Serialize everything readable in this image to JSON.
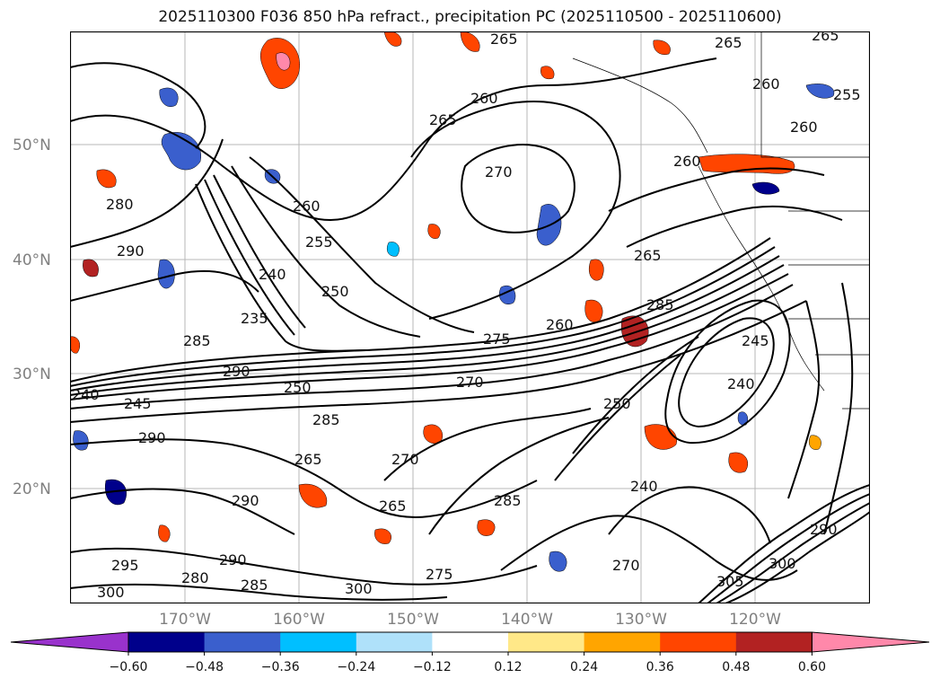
{
  "title": "2025110300 F036 850 hPa refract., precipitation PC (2025110500 - 2025110600)",
  "lat_labels": [
    "50°N",
    "40°N",
    "30°N",
    "20°N"
  ],
  "lon_labels": [
    "170°W",
    "160°W",
    "150°W",
    "140°W",
    "130°W",
    "120°W"
  ],
  "contour_labels": [
    "265",
    "265",
    "265",
    "260",
    "260",
    "255",
    "265",
    "260",
    "270",
    "260",
    "280",
    "260",
    "255",
    "240",
    "250",
    "290",
    "235",
    "285",
    "290",
    "240",
    "250",
    "245",
    "275",
    "265",
    "270",
    "260",
    "285",
    "250",
    "240",
    "245",
    "285",
    "290",
    "270",
    "265",
    "290",
    "265",
    "240",
    "285",
    "295",
    "300",
    "290",
    "280",
    "285",
    "300",
    "275",
    "270",
    "305",
    "300",
    "290"
  ],
  "colorbar": {
    "colors": [
      "#9932CC",
      "#00008B",
      "#3A5FCD",
      "#00BFFF",
      "#AFE1FA",
      "#FFFFFF",
      "#FFE888",
      "#FFA500",
      "#FF4500",
      "#B22222",
      "#FF88AA"
    ],
    "tick_labels": [
      "−0.60",
      "−0.48",
      "−0.36",
      "−0.24",
      "−0.12",
      "0.12",
      "0.24",
      "0.36",
      "0.48",
      "0.60"
    ]
  }
}
